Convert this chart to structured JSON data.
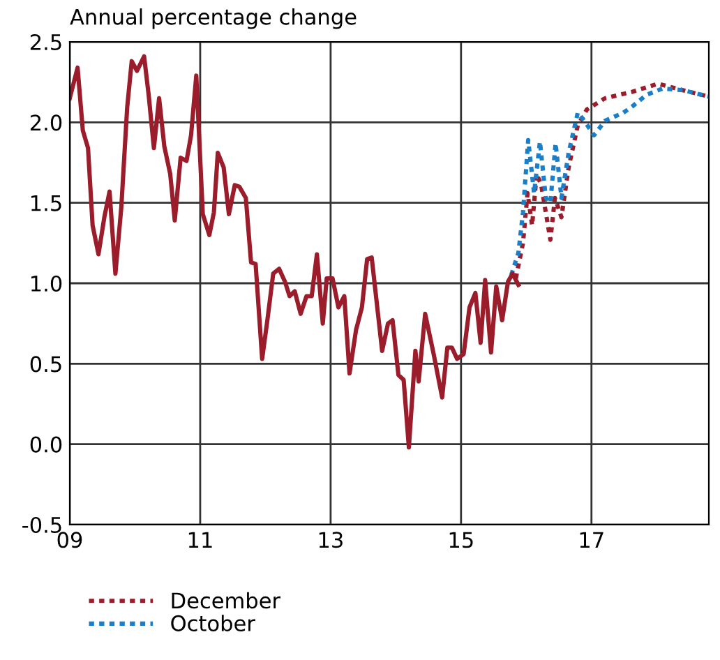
{
  "chart_data": {
    "type": "line",
    "title": "Annual percentage change",
    "xlim": [
      2009,
      2018.8
    ],
    "xticks": [
      {
        "value": 2009,
        "label": "09"
      },
      {
        "value": 2011,
        "label": "11"
      },
      {
        "value": 2013,
        "label": "13"
      },
      {
        "value": 2015,
        "label": "15"
      },
      {
        "value": 2017,
        "label": "17"
      }
    ],
    "ylim": [
      -0.5,
      2.5
    ],
    "yticks": [
      {
        "value": -0.5,
        "label": "-0.5"
      },
      {
        "value": 0,
        "label": "0.0"
      },
      {
        "value": 0.5,
        "label": "0.5"
      },
      {
        "value": 1,
        "label": "1.0"
      },
      {
        "value": 1.5,
        "label": "1.5"
      },
      {
        "value": 2,
        "label": "2.0"
      },
      {
        "value": 2.5,
        "label": "2.5"
      }
    ],
    "grid": true,
    "legend": "bottom left",
    "marker": "none",
    "series": [
      {
        "name": "December",
        "color": "#9b1c2a",
        "line_style": "dotted",
        "x": [
          2015.84,
          2015.95,
          2016.02,
          2016.09,
          2016.16,
          2016.23,
          2016.37,
          2016.44,
          2016.54,
          2016.65,
          2016.79,
          2016.93,
          2017.21,
          2017.63,
          2018.02,
          2018.4,
          2018.8
        ],
        "values": [
          1.03,
          1.25,
          1.56,
          1.36,
          1.68,
          1.61,
          1.27,
          1.53,
          1.41,
          1.72,
          1.98,
          2.08,
          2.15,
          2.19,
          2.24,
          2.2,
          2.16
        ]
      },
      {
        "name": "October",
        "color": "#1a7fc8",
        "line_style": "dotted",
        "x": [
          2015.77,
          2015.88,
          2015.95,
          2016.03,
          2016.12,
          2016.21,
          2016.3,
          2016.37,
          2016.45,
          2016.54,
          2016.65,
          2016.79,
          2016.89,
          2017.04,
          2017.21,
          2017.49,
          2017.63,
          2017.84,
          2018.09,
          2018.4,
          2018.8
        ],
        "values": [
          1.05,
          1.19,
          1.44,
          1.89,
          1.56,
          1.88,
          1.53,
          1.5,
          1.87,
          1.53,
          1.81,
          2.06,
          2.01,
          1.92,
          2.01,
          2.06,
          2.1,
          2.17,
          2.21,
          2.2,
          2.16
        ]
      },
      {
        "color": "#9b1c2a",
        "line_style": "solid",
        "x": [
          2009.0,
          2009.12,
          2009.2,
          2009.28,
          2009.35,
          2009.44,
          2009.53,
          2009.61,
          2009.7,
          2009.79,
          2009.88,
          2009.95,
          2010.03,
          2010.14,
          2010.21,
          2010.29,
          2010.37,
          2010.45,
          2010.54,
          2010.61,
          2010.7,
          2010.79,
          2010.86,
          2010.94,
          2011.04,
          2011.14,
          2011.21,
          2011.27,
          2011.36,
          2011.44,
          2011.53,
          2011.6,
          2011.7,
          2011.78,
          2011.85,
          2011.95,
          2012.03,
          2012.12,
          2012.21,
          2012.3,
          2012.37,
          2012.45,
          2012.54,
          2012.63,
          2012.71,
          2012.79,
          2012.88,
          2012.94,
          2013.03,
          2013.12,
          2013.21,
          2013.29,
          2013.39,
          2013.48,
          2013.56,
          2013.63,
          2013.79,
          2013.88,
          2013.95,
          2014.04,
          2014.12,
          2014.2,
          2014.3,
          2014.35,
          2014.45,
          2014.58,
          2014.71,
          2014.79,
          2014.86,
          2014.94,
          2015.04,
          2015.13,
          2015.22,
          2015.3,
          2015.37,
          2015.46,
          2015.54,
          2015.63,
          2015.72,
          2015.79,
          2015.88
        ],
        "values": [
          2.15,
          2.34,
          1.95,
          1.84,
          1.36,
          1.18,
          1.41,
          1.57,
          1.06,
          1.47,
          2.09,
          2.38,
          2.32,
          2.41,
          2.17,
          1.84,
          2.15,
          1.85,
          1.68,
          1.39,
          1.78,
          1.76,
          1.92,
          2.29,
          1.43,
          1.3,
          1.44,
          1.81,
          1.72,
          1.43,
          1.61,
          1.6,
          1.53,
          1.13,
          1.12,
          0.53,
          0.77,
          1.06,
          1.09,
          1.01,
          0.92,
          0.95,
          0.81,
          0.92,
          0.92,
          1.18,
          0.75,
          1.03,
          1.03,
          0.85,
          0.92,
          0.44,
          0.71,
          0.85,
          1.15,
          1.16,
          0.58,
          0.75,
          0.77,
          0.43,
          0.4,
          -0.02,
          0.58,
          0.39,
          0.81,
          0.56,
          0.29,
          0.6,
          0.6,
          0.53,
          0.56,
          0.85,
          0.94,
          0.63,
          1.02,
          0.57,
          0.98,
          0.77,
          1.01,
          1.06,
          0.99
        ]
      }
    ]
  }
}
